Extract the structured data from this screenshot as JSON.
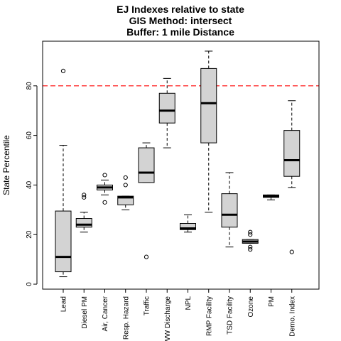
{
  "chart_data": {
    "type": "box",
    "title": [
      "EJ Indexes relative to state",
      "GIS Method: intersect",
      "Buffer: 1 mile Distance"
    ],
    "xlabel": "",
    "ylabel": "State Percentile",
    "ylim": [
      0,
      100
    ],
    "y_ticks": [
      0,
      20,
      40,
      60,
      80
    ],
    "reference_line": {
      "y": 80,
      "color": "#ff0000",
      "style": "dashed"
    },
    "box_fill": "#d3d3d3",
    "grid": false,
    "legend": "none",
    "categories": [
      "Lead",
      "Diesel PM",
      "Air, Cancer",
      "Resp. Hazard",
      "Traffic",
      "WW Discharge",
      "NPL",
      "RMP Facility",
      "TSD Facility",
      "Ozone",
      "PM",
      "Demo. Index"
    ],
    "boxes": [
      {
        "name": "Lead",
        "whisker_low": 3,
        "q1": 5,
        "median": 11,
        "q3": 29.5,
        "whisker_high": 56,
        "outliers": [
          86
        ]
      },
      {
        "name": "Diesel PM",
        "whisker_low": 21,
        "q1": 23,
        "median": 24,
        "q3": 26.5,
        "whisker_high": 29,
        "outliers": [
          35,
          36
        ]
      },
      {
        "name": "Air, Cancer",
        "whisker_low": 36,
        "q1": 38,
        "median": 39,
        "q3": 40,
        "whisker_high": 42,
        "outliers": [
          33,
          44
        ]
      },
      {
        "name": "Resp. Hazard",
        "whisker_low": 30,
        "q1": 32,
        "median": 35,
        "q3": 35.5,
        "whisker_high": 35.5,
        "outliers": [
          40,
          43
        ]
      },
      {
        "name": "Traffic",
        "whisker_low": 41,
        "q1": 41,
        "median": 45,
        "q3": 55,
        "whisker_high": 57,
        "outliers": [
          11
        ]
      },
      {
        "name": "WW Discharge",
        "whisker_low": 55,
        "q1": 65,
        "median": 70,
        "q3": 77,
        "whisker_high": 83,
        "outliers": []
      },
      {
        "name": "NPL",
        "whisker_low": 21,
        "q1": 22,
        "median": 22.5,
        "q3": 24.5,
        "whisker_high": 28,
        "outliers": []
      },
      {
        "name": "RMP Facility",
        "whisker_low": 29,
        "q1": 57,
        "median": 73,
        "q3": 87,
        "whisker_high": 94,
        "outliers": []
      },
      {
        "name": "TSD Facility",
        "whisker_low": 15,
        "q1": 23,
        "median": 28,
        "q3": 36.5,
        "whisker_high": 45,
        "outliers": []
      },
      {
        "name": "Ozone",
        "whisker_low": 16.5,
        "q1": 16.5,
        "median": 17.2,
        "q3": 18,
        "whisker_high": 18,
        "outliers": [
          14,
          15,
          20,
          21
        ]
      },
      {
        "name": "PM",
        "whisker_low": 34,
        "q1": 35,
        "median": 35.5,
        "q3": 36,
        "whisker_high": 36,
        "outliers": []
      },
      {
        "name": "Demo. Index",
        "whisker_low": 39,
        "q1": 43.5,
        "median": 50,
        "q3": 62,
        "whisker_high": 74,
        "outliers": [
          13
        ]
      }
    ]
  }
}
